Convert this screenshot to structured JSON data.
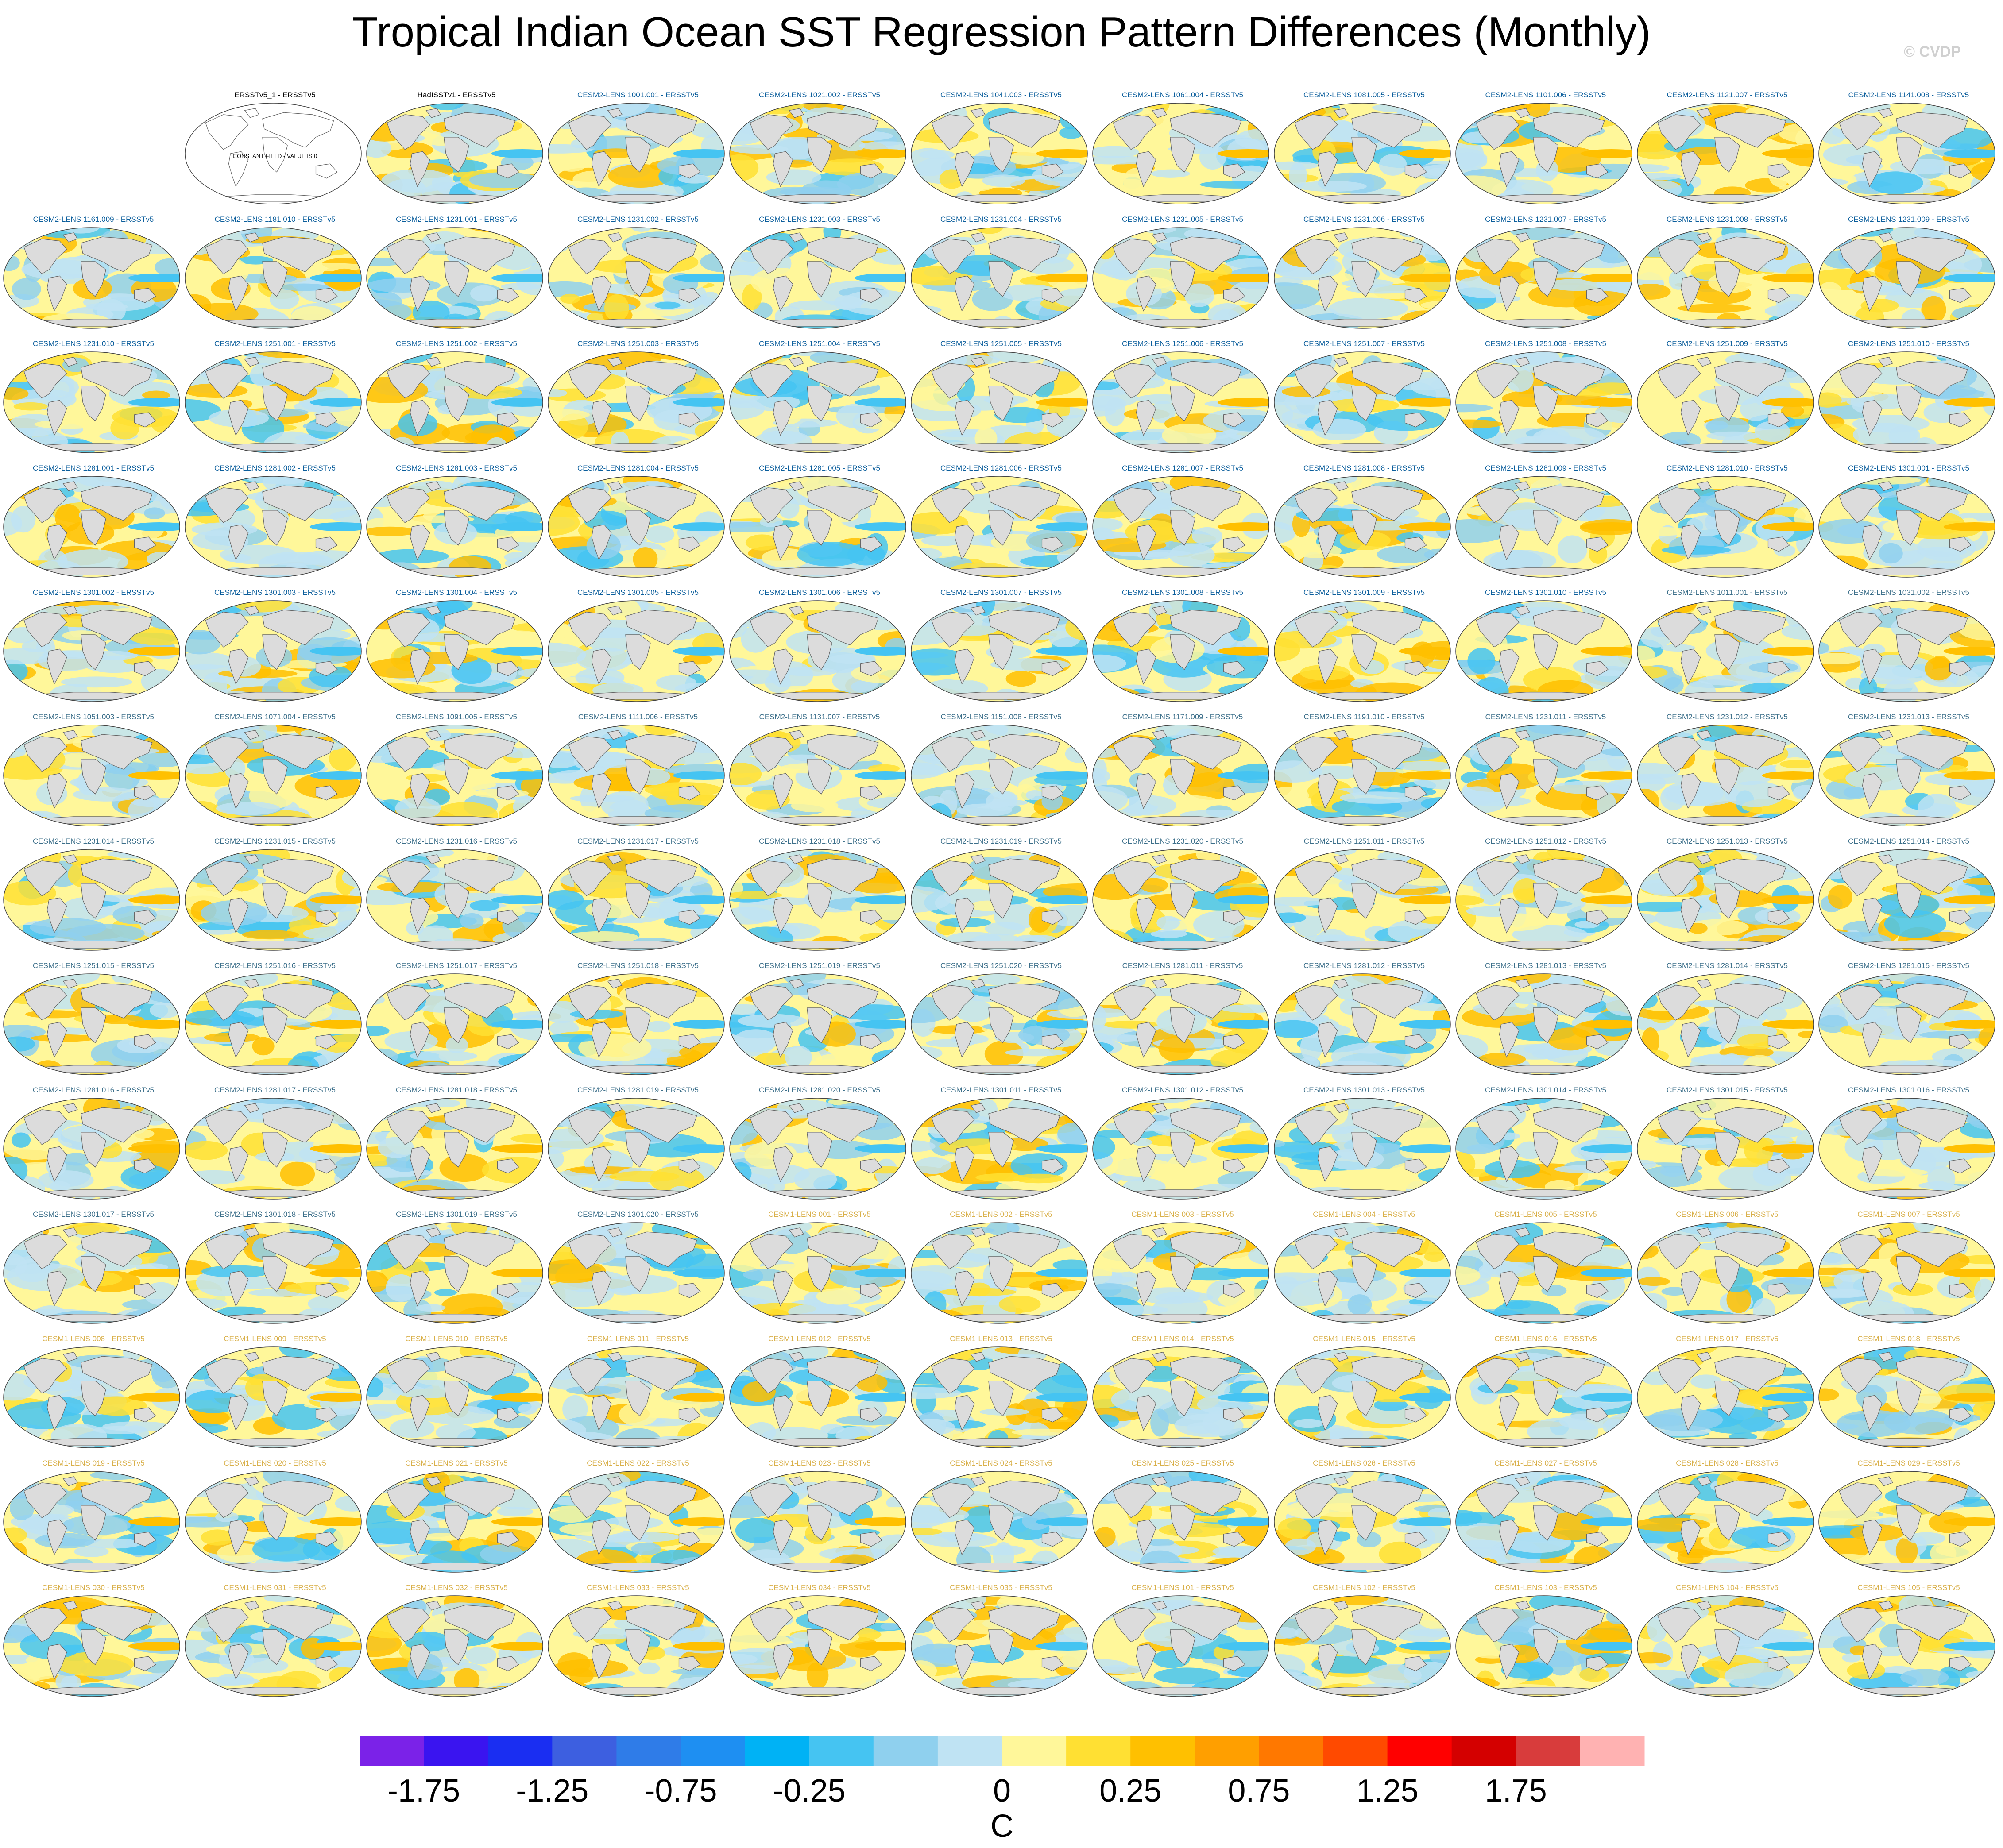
{
  "title": "Tropical Indian Ocean SST Regression Pattern Differences (Monthly)",
  "credit": "© CVDP",
  "panel_title_colors": {
    "observations": "#000000",
    "cesm2": "#0b5e9c",
    "cesm2_second": "#3c6f8a",
    "cesm1": "#d9b04a"
  },
  "constant_field_label": "CONSTANT FIELD - VALUE IS 0",
  "chart_data": {
    "type": "heatmap",
    "description_units": "C",
    "colorbar": {
      "label": "C",
      "ticks": [
        "-1.75",
        "-1.25",
        "-0.75",
        "-0.25",
        "0",
        "0.25",
        "0.75",
        "1.25",
        "1.75"
      ],
      "colors": [
        "#7b22e8",
        "#3a14f0",
        "#1a2ef2",
        "#3d5fe0",
        "#2f7ce8",
        "#1e8ff2",
        "#00b2f5",
        "#45c4f2",
        "#8fd0ee",
        "#bfe3f3",
        "#fff79a",
        "#ffe033",
        "#ffc000",
        "#ff9f00",
        "#ff7800",
        "#ff4a00",
        "#ff0000",
        "#d40000",
        "#d83c3c",
        "#ffb2b2"
      ]
    },
    "panels": [
      {
        "title": "ERSSTv5_1 - ERSSTv5",
        "group": "observations",
        "constant": true
      },
      {
        "title": "HadISSTv1 - ERSSTv5",
        "group": "observations"
      },
      {
        "title": "CESM2-LENS 1001.001 - ERSSTv5",
        "group": "cesm2"
      },
      {
        "title": "CESM2-LENS 1021.002 - ERSSTv5",
        "group": "cesm2"
      },
      {
        "title": "CESM2-LENS 1041.003 - ERSSTv5",
        "group": "cesm2"
      },
      {
        "title": "CESM2-LENS 1061.004 - ERSSTv5",
        "group": "cesm2"
      },
      {
        "title": "CESM2-LENS 1081.005 - ERSSTv5",
        "group": "cesm2"
      },
      {
        "title": "CESM2-LENS 1101.006 - ERSSTv5",
        "group": "cesm2"
      },
      {
        "title": "CESM2-LENS 1121.007 - ERSSTv5",
        "group": "cesm2"
      },
      {
        "title": "CESM2-LENS 1141.008 - ERSSTv5",
        "group": "cesm2"
      },
      {
        "title": "CESM2-LENS 1161.009 - ERSSTv5",
        "group": "cesm2"
      },
      {
        "title": "CESM2-LENS 1181.010 - ERSSTv5",
        "group": "cesm2"
      },
      {
        "title": "CESM2-LENS 1231.001 - ERSSTv5",
        "group": "cesm2"
      },
      {
        "title": "CESM2-LENS 1231.002 - ERSSTv5",
        "group": "cesm2"
      },
      {
        "title": "CESM2-LENS 1231.003 - ERSSTv5",
        "group": "cesm2"
      },
      {
        "title": "CESM2-LENS 1231.004 - ERSSTv5",
        "group": "cesm2"
      },
      {
        "title": "CESM2-LENS 1231.005 - ERSSTv5",
        "group": "cesm2"
      },
      {
        "title": "CESM2-LENS 1231.006 - ERSSTv5",
        "group": "cesm2"
      },
      {
        "title": "CESM2-LENS 1231.007 - ERSSTv5",
        "group": "cesm2"
      },
      {
        "title": "CESM2-LENS 1231.008 - ERSSTv5",
        "group": "cesm2"
      },
      {
        "title": "CESM2-LENS 1231.009 - ERSSTv5",
        "group": "cesm2"
      },
      {
        "title": "CESM2-LENS 1231.010 - ERSSTv5",
        "group": "cesm2"
      },
      {
        "title": "CESM2-LENS 1251.001 - ERSSTv5",
        "group": "cesm2"
      },
      {
        "title": "CESM2-LENS 1251.002 - ERSSTv5",
        "group": "cesm2"
      },
      {
        "title": "CESM2-LENS 1251.003 - ERSSTv5",
        "group": "cesm2"
      },
      {
        "title": "CESM2-LENS 1251.004 - ERSSTv5",
        "group": "cesm2"
      },
      {
        "title": "CESM2-LENS 1251.005 - ERSSTv5",
        "group": "cesm2"
      },
      {
        "title": "CESM2-LENS 1251.006 - ERSSTv5",
        "group": "cesm2"
      },
      {
        "title": "CESM2-LENS 1251.007 - ERSSTv5",
        "group": "cesm2"
      },
      {
        "title": "CESM2-LENS 1251.008 - ERSSTv5",
        "group": "cesm2"
      },
      {
        "title": "CESM2-LENS 1251.009 - ERSSTv5",
        "group": "cesm2"
      },
      {
        "title": "CESM2-LENS 1251.010 - ERSSTv5",
        "group": "cesm2"
      },
      {
        "title": "CESM2-LENS 1281.001 - ERSSTv5",
        "group": "cesm2"
      },
      {
        "title": "CESM2-LENS 1281.002 - ERSSTv5",
        "group": "cesm2"
      },
      {
        "title": "CESM2-LENS 1281.003 - ERSSTv5",
        "group": "cesm2"
      },
      {
        "title": "CESM2-LENS 1281.004 - ERSSTv5",
        "group": "cesm2"
      },
      {
        "title": "CESM2-LENS 1281.005 - ERSSTv5",
        "group": "cesm2"
      },
      {
        "title": "CESM2-LENS 1281.006 - ERSSTv5",
        "group": "cesm2"
      },
      {
        "title": "CESM2-LENS 1281.007 - ERSSTv5",
        "group": "cesm2"
      },
      {
        "title": "CESM2-LENS 1281.008 - ERSSTv5",
        "group": "cesm2"
      },
      {
        "title": "CESM2-LENS 1281.009 - ERSSTv5",
        "group": "cesm2"
      },
      {
        "title": "CESM2-LENS 1281.010 - ERSSTv5",
        "group": "cesm2"
      },
      {
        "title": "CESM2-LENS 1301.001 - ERSSTv5",
        "group": "cesm2"
      },
      {
        "title": "CESM2-LENS 1301.002 - ERSSTv5",
        "group": "cesm2"
      },
      {
        "title": "CESM2-LENS 1301.003 - ERSSTv5",
        "group": "cesm2"
      },
      {
        "title": "CESM2-LENS 1301.004 - ERSSTv5",
        "group": "cesm2"
      },
      {
        "title": "CESM2-LENS 1301.005 - ERSSTv5",
        "group": "cesm2"
      },
      {
        "title": "CESM2-LENS 1301.006 - ERSSTv5",
        "group": "cesm2"
      },
      {
        "title": "CESM2-LENS 1301.007 - ERSSTv5",
        "group": "cesm2"
      },
      {
        "title": "CESM2-LENS 1301.008 - ERSSTv5",
        "group": "cesm2"
      },
      {
        "title": "CESM2-LENS 1301.009 - ERSSTv5",
        "group": "cesm2"
      },
      {
        "title": "CESM2-LENS 1301.010 - ERSSTv5",
        "group": "cesm2"
      },
      {
        "title": "CESM2-LENS 1011.001 - ERSSTv5",
        "group": "cesm2_second"
      },
      {
        "title": "CESM2-LENS 1031.002 - ERSSTv5",
        "group": "cesm2_second"
      },
      {
        "title": "CESM2-LENS 1051.003 - ERSSTv5",
        "group": "cesm2_second"
      },
      {
        "title": "CESM2-LENS 1071.004 - ERSSTv5",
        "group": "cesm2_second"
      },
      {
        "title": "CESM2-LENS 1091.005 - ERSSTv5",
        "group": "cesm2_second"
      },
      {
        "title": "CESM2-LENS 1111.006 - ERSSTv5",
        "group": "cesm2_second"
      },
      {
        "title": "CESM2-LENS 1131.007 - ERSSTv5",
        "group": "cesm2_second"
      },
      {
        "title": "CESM2-LENS 1151.008 - ERSSTv5",
        "group": "cesm2_second"
      },
      {
        "title": "CESM2-LENS 1171.009 - ERSSTv5",
        "group": "cesm2_second"
      },
      {
        "title": "CESM2-LENS 1191.010 - ERSSTv5",
        "group": "cesm2_second"
      },
      {
        "title": "CESM2-LENS 1231.011 - ERSSTv5",
        "group": "cesm2_second"
      },
      {
        "title": "CESM2-LENS 1231.012 - ERSSTv5",
        "group": "cesm2_second"
      },
      {
        "title": "CESM2-LENS 1231.013 - ERSSTv5",
        "group": "cesm2_second"
      },
      {
        "title": "CESM2-LENS 1231.014 - ERSSTv5",
        "group": "cesm2_second"
      },
      {
        "title": "CESM2-LENS 1231.015 - ERSSTv5",
        "group": "cesm2_second"
      },
      {
        "title": "CESM2-LENS 1231.016 - ERSSTv5",
        "group": "cesm2_second"
      },
      {
        "title": "CESM2-LENS 1231.017 - ERSSTv5",
        "group": "cesm2_second"
      },
      {
        "title": "CESM2-LENS 1231.018 - ERSSTv5",
        "group": "cesm2_second"
      },
      {
        "title": "CESM2-LENS 1231.019 - ERSSTv5",
        "group": "cesm2_second"
      },
      {
        "title": "CESM2-LENS 1231.020 - ERSSTv5",
        "group": "cesm2_second"
      },
      {
        "title": "CESM2-LENS 1251.011 - ERSSTv5",
        "group": "cesm2_second"
      },
      {
        "title": "CESM2-LENS 1251.012 - ERSSTv5",
        "group": "cesm2_second"
      },
      {
        "title": "CESM2-LENS 1251.013 - ERSSTv5",
        "group": "cesm2_second"
      },
      {
        "title": "CESM2-LENS 1251.014 - ERSSTv5",
        "group": "cesm2_second"
      },
      {
        "title": "CESM2-LENS 1251.015 - ERSSTv5",
        "group": "cesm2_second"
      },
      {
        "title": "CESM2-LENS 1251.016 - ERSSTv5",
        "group": "cesm2_second"
      },
      {
        "title": "CESM2-LENS 1251.017 - ERSSTv5",
        "group": "cesm2_second"
      },
      {
        "title": "CESM2-LENS 1251.018 - ERSSTv5",
        "group": "cesm2_second"
      },
      {
        "title": "CESM2-LENS 1251.019 - ERSSTv5",
        "group": "cesm2_second"
      },
      {
        "title": "CESM2-LENS 1251.020 - ERSSTv5",
        "group": "cesm2_second"
      },
      {
        "title": "CESM2-LENS 1281.011 - ERSSTv5",
        "group": "cesm2_second"
      },
      {
        "title": "CESM2-LENS 1281.012 - ERSSTv5",
        "group": "cesm2_second"
      },
      {
        "title": "CESM2-LENS 1281.013 - ERSSTv5",
        "group": "cesm2_second"
      },
      {
        "title": "CESM2-LENS 1281.014 - ERSSTv5",
        "group": "cesm2_second"
      },
      {
        "title": "CESM2-LENS 1281.015 - ERSSTv5",
        "group": "cesm2_second"
      },
      {
        "title": "CESM2-LENS 1281.016 - ERSSTv5",
        "group": "cesm2_second"
      },
      {
        "title": "CESM2-LENS 1281.017 - ERSSTv5",
        "group": "cesm2_second"
      },
      {
        "title": "CESM2-LENS 1281.018 - ERSSTv5",
        "group": "cesm2_second"
      },
      {
        "title": "CESM2-LENS 1281.019 - ERSSTv5",
        "group": "cesm2_second"
      },
      {
        "title": "CESM2-LENS 1281.020 - ERSSTv5",
        "group": "cesm2_second"
      },
      {
        "title": "CESM2-LENS 1301.011 - ERSSTv5",
        "group": "cesm2_second"
      },
      {
        "title": "CESM2-LENS 1301.012 - ERSSTv5",
        "group": "cesm2_second"
      },
      {
        "title": "CESM2-LENS 1301.013 - ERSSTv5",
        "group": "cesm2_second"
      },
      {
        "title": "CESM2-LENS 1301.014 - ERSSTv5",
        "group": "cesm2_second"
      },
      {
        "title": "CESM2-LENS 1301.015 - ERSSTv5",
        "group": "cesm2_second"
      },
      {
        "title": "CESM2-LENS 1301.016 - ERSSTv5",
        "group": "cesm2_second"
      },
      {
        "title": "CESM2-LENS 1301.017 - ERSSTv5",
        "group": "cesm2_second"
      },
      {
        "title": "CESM2-LENS 1301.018 - ERSSTv5",
        "group": "cesm2_second"
      },
      {
        "title": "CESM2-LENS 1301.019 - ERSSTv5",
        "group": "cesm2_second"
      },
      {
        "title": "CESM2-LENS 1301.020 - ERSSTv5",
        "group": "cesm2_second"
      },
      {
        "title": "CESM1-LENS 001 - ERSSTv5",
        "group": "cesm1"
      },
      {
        "title": "CESM1-LENS 002 - ERSSTv5",
        "group": "cesm1"
      },
      {
        "title": "CESM1-LENS 003 - ERSSTv5",
        "group": "cesm1"
      },
      {
        "title": "CESM1-LENS 004 - ERSSTv5",
        "group": "cesm1"
      },
      {
        "title": "CESM1-LENS 005 - ERSSTv5",
        "group": "cesm1"
      },
      {
        "title": "CESM1-LENS 006 - ERSSTv5",
        "group": "cesm1"
      },
      {
        "title": "CESM1-LENS 007 - ERSSTv5",
        "group": "cesm1"
      },
      {
        "title": "CESM1-LENS 008 - ERSSTv5",
        "group": "cesm1"
      },
      {
        "title": "CESM1-LENS 009 - ERSSTv5",
        "group": "cesm1"
      },
      {
        "title": "CESM1-LENS 010 - ERSSTv5",
        "group": "cesm1"
      },
      {
        "title": "CESM1-LENS 011 - ERSSTv5",
        "group": "cesm1"
      },
      {
        "title": "CESM1-LENS 012 - ERSSTv5",
        "group": "cesm1"
      },
      {
        "title": "CESM1-LENS 013 - ERSSTv5",
        "group": "cesm1"
      },
      {
        "title": "CESM1-LENS 014 - ERSSTv5",
        "group": "cesm1"
      },
      {
        "title": "CESM1-LENS 015 - ERSSTv5",
        "group": "cesm1"
      },
      {
        "title": "CESM1-LENS 016 - ERSSTv5",
        "group": "cesm1"
      },
      {
        "title": "CESM1-LENS 017 - ERSSTv5",
        "group": "cesm1"
      },
      {
        "title": "CESM1-LENS 018 - ERSSTv5",
        "group": "cesm1"
      },
      {
        "title": "CESM1-LENS 019 - ERSSTv5",
        "group": "cesm1"
      },
      {
        "title": "CESM1-LENS 020 - ERSSTv5",
        "group": "cesm1"
      },
      {
        "title": "CESM1-LENS 021 - ERSSTv5",
        "group": "cesm1"
      },
      {
        "title": "CESM1-LENS 022 - ERSSTv5",
        "group": "cesm1"
      },
      {
        "title": "CESM1-LENS 023 - ERSSTv5",
        "group": "cesm1"
      },
      {
        "title": "CESM1-LENS 024 - ERSSTv5",
        "group": "cesm1"
      },
      {
        "title": "CESM1-LENS 025 - ERSSTv5",
        "group": "cesm1"
      },
      {
        "title": "CESM1-LENS 026 - ERSSTv5",
        "group": "cesm1"
      },
      {
        "title": "CESM1-LENS 027 - ERSSTv5",
        "group": "cesm1"
      },
      {
        "title": "CESM1-LENS 028 - ERSSTv5",
        "group": "cesm1"
      },
      {
        "title": "CESM1-LENS 029 - ERSSTv5",
        "group": "cesm1"
      },
      {
        "title": "CESM1-LENS 030 - ERSSTv5",
        "group": "cesm1"
      },
      {
        "title": "CESM1-LENS 031 - ERSSTv5",
        "group": "cesm1"
      },
      {
        "title": "CESM1-LENS 032 - ERSSTv5",
        "group": "cesm1"
      },
      {
        "title": "CESM1-LENS 033 - ERSSTv5",
        "group": "cesm1"
      },
      {
        "title": "CESM1-LENS 034 - ERSSTv5",
        "group": "cesm1"
      },
      {
        "title": "CESM1-LENS 035 - ERSSTv5",
        "group": "cesm1"
      },
      {
        "title": "CESM1-LENS 101 - ERSSTv5",
        "group": "cesm1"
      },
      {
        "title": "CESM1-LENS 102 - ERSSTv5",
        "group": "cesm1"
      },
      {
        "title": "CESM1-LENS 103 - ERSSTv5",
        "group": "cesm1"
      },
      {
        "title": "CESM1-LENS 104 - ERSSTv5",
        "group": "cesm1"
      },
      {
        "title": "CESM1-LENS 105 - ERSSTv5",
        "group": "cesm1"
      }
    ]
  }
}
